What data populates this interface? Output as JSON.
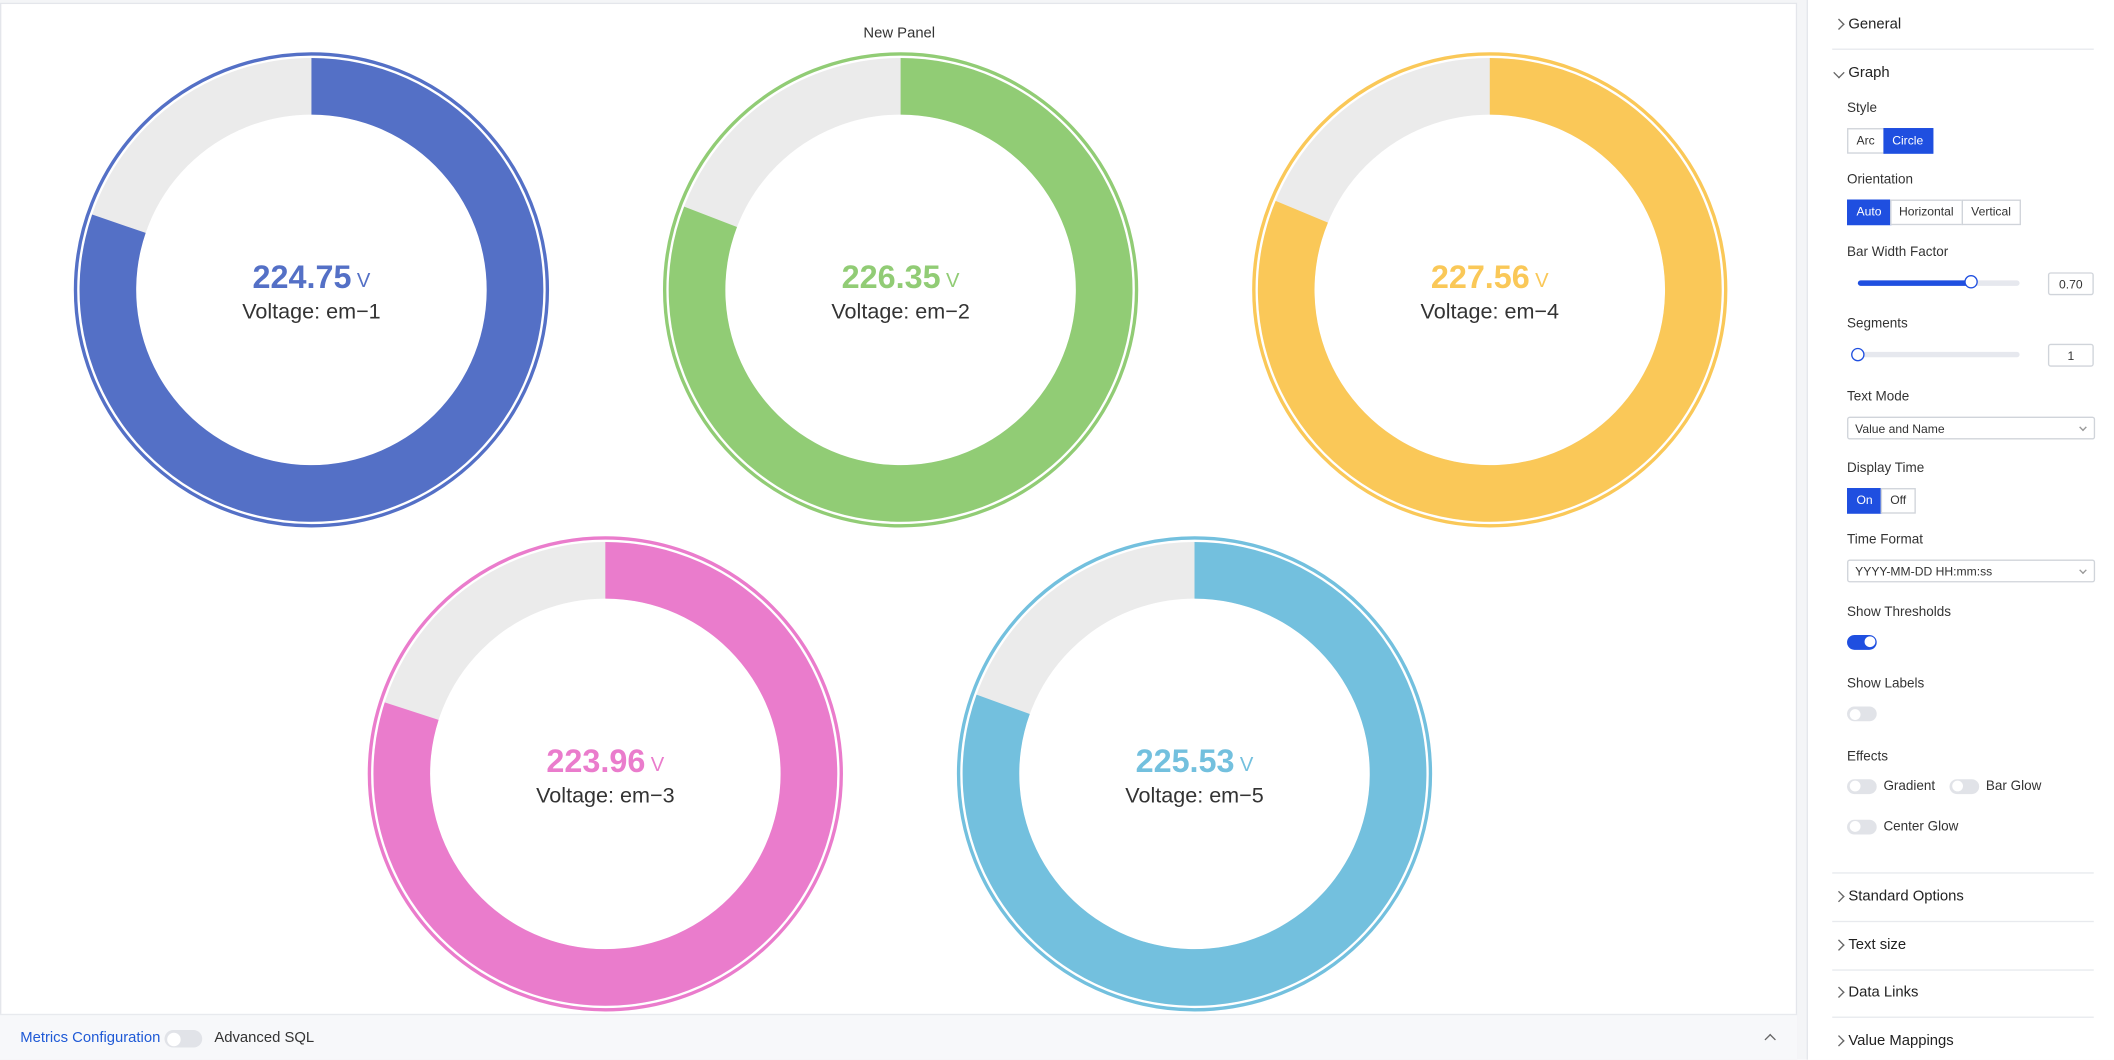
{
  "chart_data": {
    "type": "gauge",
    "title": "New Panel",
    "unit": "V",
    "ylim": [
      0,
      280
    ],
    "threshold_ring": true,
    "series": [
      {
        "name": "Voltage: em−1",
        "color": "#5470c6",
        "values": [
          224.75
        ]
      },
      {
        "name": "Voltage: em−2",
        "color": "#91cc75",
        "values": [
          226.35
        ]
      },
      {
        "name": "Voltage: em−4",
        "color": "#fac858",
        "values": [
          227.56
        ]
      },
      {
        "name": "Voltage: em−3",
        "color": "#ea7ccc",
        "values": [
          223.96
        ]
      },
      {
        "name": "Voltage: em−5",
        "color": "#73c0de",
        "values": [
          225.53
        ]
      }
    ]
  },
  "settings": {
    "sections_before": [
      "General"
    ],
    "graph": {
      "title": "Graph",
      "fields": [
        {
          "label": "Style",
          "kind": "buttons",
          "options": [
            "Arc",
            "Circle"
          ],
          "selected": 1
        },
        {
          "label": "Orientation",
          "kind": "buttons",
          "options": [
            "Auto",
            "Horizontal",
            "Vertical"
          ],
          "selected": 0
        },
        {
          "label": "Bar Width Factor",
          "kind": "slider",
          "value": 0.7,
          "value_label": "0.70",
          "range": [
            0,
            1
          ]
        },
        {
          "label": "Segments",
          "kind": "slider",
          "value": 1,
          "range": [
            1,
            10
          ]
        },
        {
          "label": "Text Mode",
          "kind": "select",
          "value": "Value and Name"
        },
        {
          "label": "Display Time",
          "kind": "buttons",
          "options": [
            "On",
            "Off"
          ],
          "selected": 0
        },
        {
          "label": "Time Format",
          "kind": "select",
          "value": "YYYY-MM-DD HH:mm:ss"
        },
        {
          "label": "Show Thresholds",
          "kind": "toggle",
          "on": true
        },
        {
          "label": "Show Labels",
          "kind": "toggle",
          "on": false
        },
        {
          "label": "Effects",
          "kind": "toggles",
          "items": [
            {
              "label": "Gradient",
              "on": false
            },
            {
              "label": "Bar Glow",
              "on": false
            },
            {
              "label": "Center Glow",
              "on": false
            }
          ]
        }
      ]
    },
    "sections_after": [
      "Standard Options",
      "Text size",
      "Data Links",
      "Value Mappings"
    ]
  },
  "footer": {
    "tab": "Metrics Configuration",
    "toggle_label": "Advanced SQL",
    "advanced_sql": false
  }
}
